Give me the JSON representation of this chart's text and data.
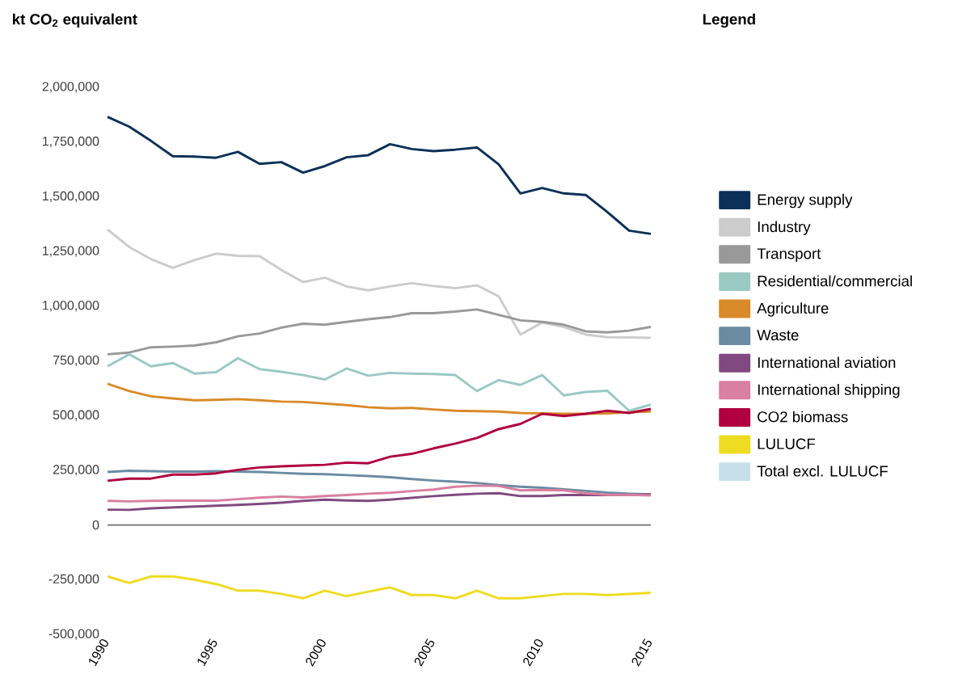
{
  "chart_data": {
    "type": "line",
    "ylabel": "kt CO$_{2}$ equivalent",
    "legend_title": "Legend",
    "legend": "right",
    "ref_lines": [
      {
        "axis": "y",
        "value": 0,
        "color": "#707070"
      }
    ],
    "marker": "none",
    "line_style": "solid",
    "x": [
      1990,
      1991,
      1992,
      1993,
      1994,
      1995,
      1996,
      1997,
      1998,
      1999,
      2000,
      2001,
      2002,
      2003,
      2004,
      2005,
      2006,
      2007,
      2008,
      2009,
      2010,
      2011,
      2012,
      2013,
      2014,
      2015
    ],
    "xlim": [
      1990,
      2015
    ],
    "xticks": [
      1990,
      1995,
      2000,
      2005,
      2010,
      2015
    ],
    "ylim": [
      -500000,
      2000000
    ],
    "yticks": [
      {
        "value": -500000,
        "label": "-500,000"
      },
      {
        "value": -250000,
        "label": "-250,000"
      },
      {
        "value": 0,
        "label": "0"
      },
      {
        "value": 250000,
        "label": "250,000"
      },
      {
        "value": 500000,
        "label": "500,000"
      },
      {
        "value": 750000,
        "label": "750,000"
      },
      {
        "value": 1000000,
        "label": "1,000,000"
      },
      {
        "value": 1250000,
        "label": "1,250,000"
      },
      {
        "value": 1500000,
        "label": "1,500,000"
      },
      {
        "value": 1750000,
        "label": "1,750,000"
      },
      {
        "value": 2000000,
        "label": "2,000,000"
      }
    ],
    "series": [
      {
        "name": "Energy supply",
        "color": "#0b3158",
        "values": [
          1865000,
          1820000,
          1755000,
          1685000,
          1683000,
          1678000,
          1705000,
          1650000,
          1658000,
          1610000,
          1640000,
          1680000,
          1690000,
          1740000,
          1718000,
          1708000,
          1715000,
          1725000,
          1648000,
          1515000,
          1540000,
          1515000,
          1508000,
          1430000,
          1345000,
          1330000
        ]
      },
      {
        "name": "Industry",
        "color": "#cccccc",
        "values": [
          1350000,
          1270000,
          1215000,
          1175000,
          1210000,
          1240000,
          1230000,
          1228000,
          1165000,
          1110000,
          1130000,
          1090000,
          1072000,
          1090000,
          1105000,
          1092000,
          1082000,
          1095000,
          1045000,
          870000,
          925000,
          905000,
          870000,
          858000,
          857000,
          855000
        ]
      },
      {
        "name": "Transport",
        "color": "#999999",
        "values": [
          780000,
          788000,
          812000,
          815000,
          820000,
          835000,
          862000,
          875000,
          902000,
          920000,
          915000,
          928000,
          940000,
          950000,
          968000,
          968000,
          975000,
          985000,
          960000,
          935000,
          928000,
          915000,
          885000,
          880000,
          888000,
          905000
        ]
      },
      {
        "name": "Residential/commercial",
        "color": "#9ac9c4",
        "values": [
          725000,
          780000,
          725000,
          740000,
          692000,
          698000,
          762000,
          712000,
          700000,
          685000,
          665000,
          715000,
          682000,
          695000,
          692000,
          690000,
          685000,
          612000,
          662000,
          640000,
          685000,
          592000,
          608000,
          613000,
          522000,
          550000
        ]
      },
      {
        "name": "Agriculture",
        "color": "#d98a29",
        "values": [
          645000,
          612000,
          588000,
          578000,
          570000,
          572000,
          575000,
          570000,
          564000,
          562000,
          555000,
          548000,
          538000,
          533000,
          535000,
          528000,
          522000,
          520000,
          518000,
          512000,
          510000,
          508000,
          508000,
          510000,
          515000,
          518000
        ]
      },
      {
        "name": "Waste",
        "color": "#6b8ba3",
        "values": [
          242000,
          248000,
          246000,
          244000,
          244000,
          246000,
          244000,
          242000,
          238000,
          234000,
          232000,
          228000,
          224000,
          218000,
          210000,
          203000,
          198000,
          192000,
          182000,
          175000,
          170000,
          163000,
          156000,
          148000,
          143000,
          140000
        ]
      },
      {
        "name": "International aviation",
        "color": "#804a80",
        "values": [
          70000,
          69000,
          76000,
          80000,
          84000,
          88000,
          92000,
          96000,
          102000,
          110000,
          116000,
          112000,
          110000,
          116000,
          124000,
          132000,
          138000,
          143000,
          145000,
          132000,
          132000,
          137000,
          137000,
          137000,
          138000,
          140000
        ]
      },
      {
        "name": "International shipping",
        "color": "#d97fa0",
        "values": [
          110000,
          108000,
          110000,
          111000,
          111000,
          111000,
          118000,
          125000,
          130000,
          126000,
          132000,
          137000,
          143000,
          147000,
          155000,
          162000,
          175000,
          180000,
          178000,
          158000,
          160000,
          158000,
          145000,
          138000,
          138000,
          135000
        ]
      },
      {
        "name": "CO2 biomass",
        "color": "#b0003e",
        "values": [
          202000,
          212000,
          212000,
          230000,
          230000,
          236000,
          252000,
          263000,
          268000,
          272000,
          275000,
          285000,
          282000,
          312000,
          325000,
          350000,
          372000,
          398000,
          438000,
          462000,
          508000,
          498000,
          508000,
          522000,
          512000,
          530000
        ]
      },
      {
        "name": "LULUCF",
        "color": "#eedc22",
        "values": [
          -235000,
          -265000,
          -235000,
          -235000,
          -250000,
          -270000,
          -300000,
          -300000,
          -315000,
          -335000,
          -300000,
          -325000,
          -305000,
          -285000,
          -320000,
          -320000,
          -335000,
          -300000,
          -335000,
          -335000,
          -325000,
          -315000,
          -315000,
          -320000,
          -315000,
          -310000
        ]
      },
      {
        "name": "Total excl. LULUCF",
        "color": "#c6dfe9",
        "values": [
          null,
          null,
          null,
          null,
          null,
          null,
          null,
          null,
          null,
          null,
          null,
          null,
          null,
          null,
          null,
          null,
          null,
          null,
          null,
          null,
          null,
          null,
          null,
          null,
          null,
          null
        ]
      }
    ]
  }
}
